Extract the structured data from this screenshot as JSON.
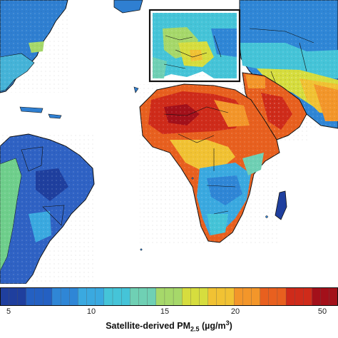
{
  "legend": {
    "title_prefix": "Satellite-derived PM",
    "title_subscript": "2.5",
    "title_unit_prefix": " (µg/m",
    "title_unit_superscript": "3",
    "title_unit_suffix": ")",
    "ticks": [
      "5",
      "10",
      "15",
      "20",
      "50"
    ],
    "scale_colors": [
      "#1f3f9e",
      "#2460c2",
      "#2f86d6",
      "#3aa9e0",
      "#45c4d8",
      "#6fd0b4",
      "#a6d86a",
      "#d6dd3e",
      "#f1c233",
      "#f3962a",
      "#e8601f",
      "#cf2b1a",
      "#a3101a"
    ]
  },
  "map": {
    "inset_region": "Europe",
    "ocean_color": "#ffffff",
    "border_color": "#111111"
  }
}
